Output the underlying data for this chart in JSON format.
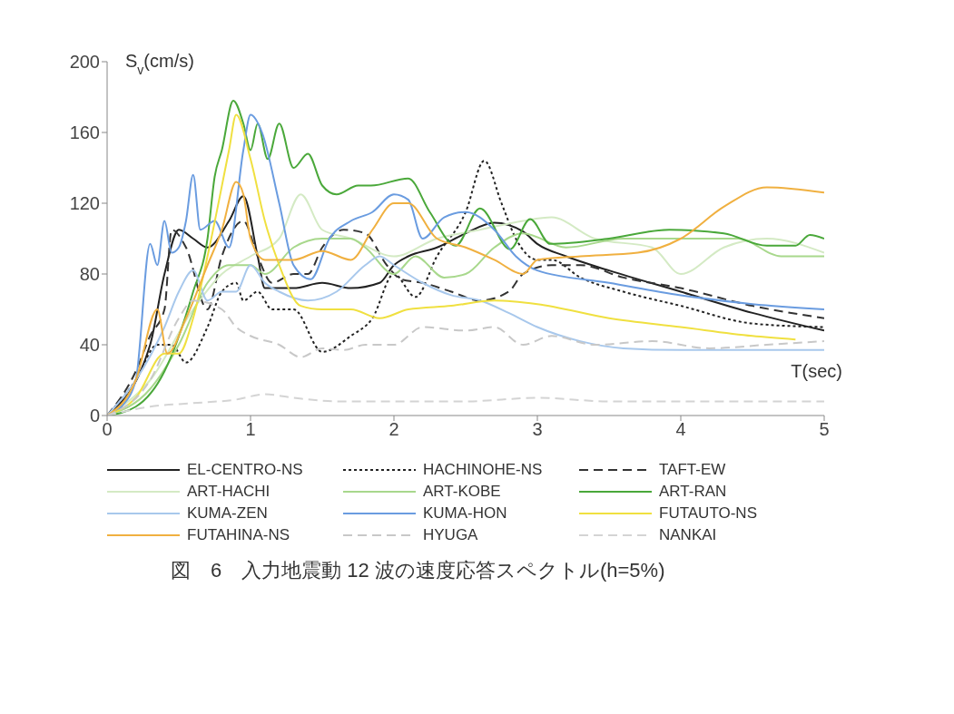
{
  "chart_data": {
    "type": "line",
    "title": "図　6　入力地震動 12 波の速度応答スペクトル(h=5%)",
    "xlabel": "T(sec)",
    "ylabel": "S$_{v}$(cm/s)",
    "xlim": [
      0,
      5
    ],
    "ylim": [
      0,
      200
    ],
    "xticks": [
      0,
      1,
      2,
      3,
      4,
      5
    ],
    "yticks": [
      0,
      40,
      80,
      120,
      160,
      200
    ],
    "legend": "bottom",
    "marker": "none",
    "series": [
      {
        "name": "EL-CENTRO-NS",
        "color": "#222222",
        "line_style": "solid",
        "x": [
          0,
          0.3,
          0.4,
          0.5,
          0.6,
          0.7,
          0.85,
          0.95,
          1.05,
          1.1,
          1.3,
          1.5,
          1.7,
          1.9,
          2.0,
          2.1,
          2.3,
          2.5,
          2.7,
          2.9,
          3.0,
          3.2,
          3.5,
          4.0,
          4.5,
          5.0
        ],
        "values": [
          0,
          40,
          80,
          105,
          100,
          95,
          110,
          124,
          90,
          72,
          72,
          75,
          72,
          75,
          85,
          90,
          95,
          103,
          109,
          104,
          97,
          90,
          82,
          70,
          58,
          48
        ]
      },
      {
        "name": "HACHINOHE-NS",
        "color": "#222222",
        "line_style": "dotted",
        "x": [
          0,
          0.2,
          0.35,
          0.45,
          0.55,
          0.7,
          0.8,
          0.9,
          0.95,
          1.05,
          1.15,
          1.3,
          1.5,
          1.7,
          1.85,
          2.0,
          2.15,
          2.3,
          2.5,
          2.63,
          2.75,
          2.85,
          3.0,
          3.1,
          3.3,
          3.6,
          4.0,
          4.5,
          5.0
        ],
        "values": [
          0,
          20,
          40,
          40,
          30,
          50,
          70,
          75,
          65,
          70,
          60,
          60,
          36,
          45,
          55,
          80,
          67,
          90,
          115,
          144,
          120,
          100,
          88,
          88,
          78,
          70,
          62,
          52,
          50
        ]
      },
      {
        "name": "TAFT-EW",
        "color": "#333333",
        "line_style": "dashed",
        "x": [
          0,
          0.2,
          0.3,
          0.4,
          0.45,
          0.55,
          0.7,
          0.8,
          0.95,
          1.05,
          1.15,
          1.3,
          1.4,
          1.5,
          1.65,
          1.8,
          1.95,
          2.05,
          2.2,
          2.4,
          2.6,
          2.8,
          2.9,
          3.1,
          3.3,
          3.6,
          4.0,
          4.5,
          5.0
        ],
        "values": [
          0,
          25,
          45,
          60,
          105,
          95,
          60,
          90,
          110,
          90,
          75,
          80,
          80,
          95,
          105,
          103,
          85,
          77,
          75,
          70,
          65,
          70,
          80,
          85,
          85,
          78,
          72,
          62,
          55
        ]
      },
      {
        "name": "ART-HACHI",
        "color": "#d4eac4",
        "line_style": "solid",
        "x": [
          0,
          0.3,
          0.6,
          0.8,
          1.0,
          1.2,
          1.35,
          1.5,
          1.7,
          2.0,
          2.3,
          2.6,
          2.9,
          3.1,
          3.4,
          3.8,
          4.0,
          4.3,
          4.6,
          5.0
        ],
        "values": [
          0,
          20,
          60,
          80,
          90,
          100,
          125,
          105,
          100,
          90,
          100,
          105,
          110,
          112,
          100,
          95,
          80,
          95,
          100,
          92
        ]
      },
      {
        "name": "ART-KOBE",
        "color": "#a8d88c",
        "line_style": "solid",
        "x": [
          0,
          0.3,
          0.5,
          0.7,
          0.85,
          1.0,
          1.1,
          1.3,
          1.5,
          1.7,
          1.8,
          2.0,
          2.15,
          2.35,
          2.5,
          2.7,
          2.9,
          3.2,
          3.6,
          4.0,
          4.4,
          4.7,
          5.0
        ],
        "values": [
          0,
          15,
          40,
          75,
          85,
          85,
          80,
          95,
          100,
          100,
          95,
          80,
          90,
          78,
          80,
          95,
          103,
          95,
          100,
          100,
          100,
          90,
          90
        ]
      },
      {
        "name": "ART-RAN",
        "color": "#4aa83a",
        "line_style": "solid",
        "x": [
          0,
          0.2,
          0.4,
          0.6,
          0.7,
          0.75,
          0.8,
          0.88,
          0.95,
          1.0,
          1.05,
          1.12,
          1.2,
          1.3,
          1.4,
          1.5,
          1.6,
          1.75,
          1.84,
          2.1,
          2.25,
          2.43,
          2.6,
          2.81,
          2.95,
          3.09,
          3.5,
          3.92,
          4.3,
          4.6,
          4.8,
          4.9,
          5.0
        ],
        "values": [
          0,
          5,
          25,
          70,
          100,
          135,
          150,
          178,
          165,
          150,
          165,
          145,
          165,
          140,
          148,
          130,
          125,
          130,
          130,
          134,
          115,
          96,
          117,
          94,
          111,
          97,
          100,
          105,
          103,
          96,
          96,
          102,
          100
        ]
      },
      {
        "name": "KUMA-ZEN",
        "color": "#a8c8ec",
        "line_style": "solid",
        "x": [
          0,
          0.2,
          0.4,
          0.5,
          0.6,
          0.7,
          0.8,
          0.9,
          1.0,
          1.1,
          1.2,
          1.4,
          1.6,
          1.8,
          1.9,
          2.0,
          2.2,
          2.4,
          2.6,
          2.8,
          3.0,
          3.3,
          3.6,
          4.0,
          5.0
        ],
        "values": [
          0,
          20,
          50,
          70,
          82,
          65,
          70,
          70,
          85,
          75,
          70,
          65,
          70,
          85,
          90,
          85,
          75,
          68,
          65,
          58,
          50,
          42,
          38,
          37,
          37
        ]
      },
      {
        "name": "KUMA-HON",
        "color": "#6a9ce0",
        "line_style": "solid",
        "x": [
          0,
          0.1,
          0.2,
          0.3,
          0.35,
          0.4,
          0.45,
          0.5,
          0.55,
          0.6,
          0.65,
          0.75,
          0.85,
          0.95,
          1.0,
          1.08,
          1.2,
          1.3,
          1.42,
          1.55,
          1.7,
          1.85,
          2.0,
          2.1,
          2.2,
          2.35,
          2.5,
          2.7,
          2.85,
          3.0,
          3.5,
          4.0,
          4.5,
          5.0
        ],
        "values": [
          0,
          5,
          20,
          97,
          85,
          110,
          92,
          95,
          110,
          136,
          105,
          110,
          95,
          150,
          170,
          160,
          120,
          85,
          77,
          100,
          110,
          115,
          125,
          122,
          100,
          112,
          115,
          105,
          90,
          82,
          75,
          68,
          63,
          60
        ]
      },
      {
        "name": "FUTAUTO-NS",
        "color": "#f0e040",
        "line_style": "solid",
        "x": [
          0,
          0.2,
          0.4,
          0.5,
          0.6,
          0.7,
          0.85,
          0.9,
          1.0,
          1.1,
          1.2,
          1.35,
          1.5,
          1.7,
          1.9,
          2.1,
          2.4,
          2.7,
          3.0,
          3.5,
          4.0,
          4.5,
          4.8
        ],
        "values": [
          0,
          10,
          35,
          35,
          55,
          90,
          150,
          170,
          145,
          110,
          85,
          62,
          60,
          60,
          55,
          60,
          62,
          65,
          63,
          55,
          50,
          45,
          43
        ]
      },
      {
        "name": "FUTAHINA-NS",
        "color": "#f0b040",
        "line_style": "solid",
        "x": [
          0,
          0.2,
          0.35,
          0.42,
          0.55,
          0.7,
          0.8,
          0.9,
          0.95,
          1.0,
          1.1,
          1.3,
          1.5,
          1.7,
          1.85,
          2.0,
          2.1,
          2.3,
          2.5,
          2.7,
          2.9,
          3.0,
          3.3,
          3.7,
          4.0,
          4.3,
          4.6,
          5.0
        ],
        "values": [
          0,
          20,
          60,
          35,
          55,
          85,
          105,
          132,
          125,
          100,
          88,
          88,
          93,
          88,
          105,
          120,
          120,
          100,
          95,
          88,
          80,
          88,
          90,
          92,
          100,
          118,
          129,
          126
        ]
      },
      {
        "name": "HYUGA",
        "color": "#c8c8c8",
        "line_style": "dashed",
        "x": [
          0,
          0.3,
          0.5,
          0.6,
          0.8,
          0.9,
          1.0,
          1.2,
          1.35,
          1.5,
          1.65,
          1.8,
          2.0,
          2.2,
          2.5,
          2.7,
          2.9,
          3.1,
          3.4,
          3.8,
          4.2,
          4.6,
          5.0
        ],
        "values": [
          0,
          20,
          55,
          65,
          60,
          50,
          45,
          40,
          33,
          38,
          37,
          40,
          40,
          50,
          48,
          50,
          40,
          45,
          40,
          42,
          38,
          40,
          42
        ]
      },
      {
        "name": "NANKAI",
        "color": "#d4d4d4",
        "line_style": "dashed",
        "x": [
          0,
          0.3,
          0.6,
          0.9,
          1.1,
          1.3,
          1.6,
          2.0,
          2.5,
          3.0,
          3.5,
          4.0,
          4.5,
          5.0
        ],
        "values": [
          0,
          5,
          7,
          9,
          12,
          10,
          8,
          8,
          8,
          10,
          8,
          8,
          8,
          8
        ]
      }
    ]
  }
}
